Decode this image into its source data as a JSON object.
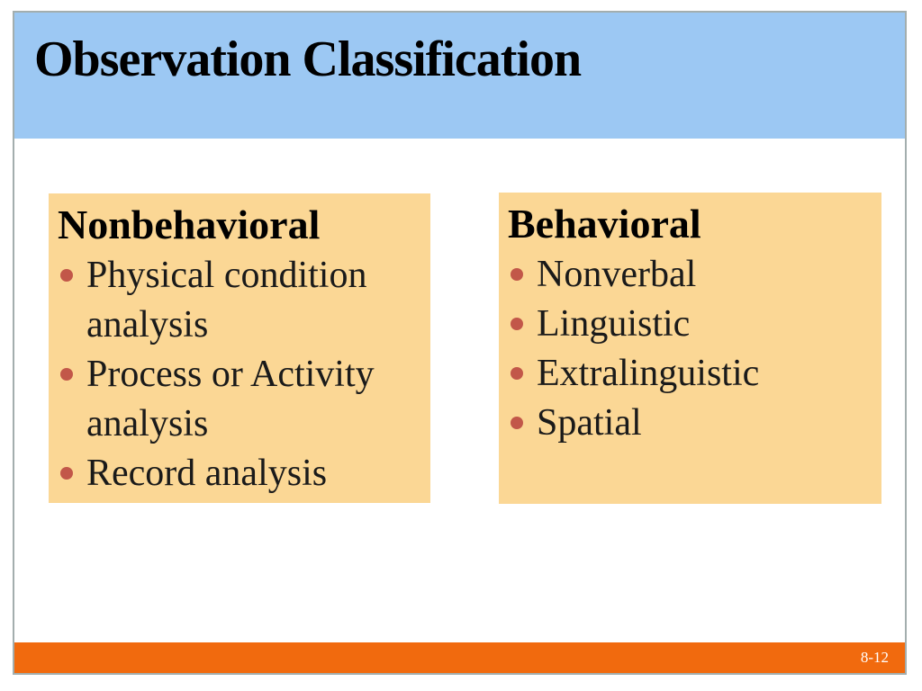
{
  "slide": {
    "title": "Observation Classification",
    "columns": [
      {
        "heading": "Nonbehavioral",
        "bullets": [
          "Physical condition analysis",
          "Process or Activity analysis",
          "Record analysis"
        ]
      },
      {
        "heading": "Behavioral",
        "bullets": [
          "Nonverbal",
          "Linguistic",
          "Extralinguistic",
          "Spatial"
        ]
      }
    ],
    "footer": {
      "page_number": "8-12"
    }
  },
  "colors": {
    "header-bg": "#9CC8F3",
    "box-bg": "#FBD795",
    "bullet": "#C25749",
    "footer-bg": "#F16A0E",
    "frame-border": "#A3AEAE",
    "title-text": "#000000",
    "body-text": "#1A1A1A",
    "footer-text": "#FFFFFF"
  }
}
